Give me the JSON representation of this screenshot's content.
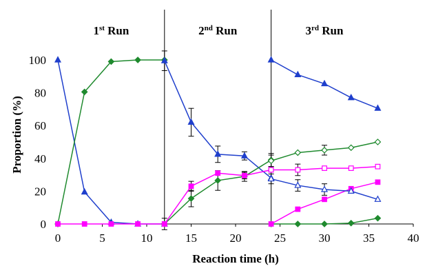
{
  "chart_data": {
    "type": "line",
    "title": "",
    "xlabel": "Reaction time (h)",
    "ylabel": "Proportion (%)",
    "xlim": [
      0,
      40
    ],
    "ylim": [
      0,
      100
    ],
    "xticks": [
      0,
      5,
      10,
      15,
      20,
      25,
      30,
      35,
      40
    ],
    "yticks": [
      0,
      20,
      40,
      60,
      80,
      100
    ],
    "grid": false,
    "legend": "none",
    "dividers_x": [
      12,
      24
    ],
    "annotations": [
      {
        "x": 6,
        "base": "1",
        "sup": "st",
        "rest": " Run"
      },
      {
        "x": 18,
        "base": "2",
        "sup": "nd",
        "rest": " Run"
      },
      {
        "x": 30,
        "base": "3",
        "sup": "rd",
        "rest": " Run"
      }
    ],
    "series": [
      {
        "color": "#1f3fcc",
        "marker": "triangle",
        "filled": true,
        "x": [
          0,
          3,
          6,
          9,
          12
        ],
        "y": [
          100,
          19.5,
          1,
          0,
          0
        ]
      },
      {
        "color": "#1f8a2e",
        "marker": "diamond",
        "filled": true,
        "x": [
          0,
          3,
          6,
          9,
          12
        ],
        "y": [
          0,
          80.5,
          99,
          100,
          100
        ]
      },
      {
        "color": "#ff00ff",
        "marker": "square",
        "filled": true,
        "x": [
          0,
          3,
          6,
          9,
          12
        ],
        "y": [
          0,
          0,
          0,
          0,
          0
        ]
      },
      {
        "color": "#1f3fcc",
        "marker": "triangle",
        "filled": true,
        "x": [
          12,
          15,
          18,
          21,
          24
        ],
        "y": [
          99.5,
          62,
          42.5,
          41.5,
          28
        ],
        "err": [
          6,
          8.5,
          5,
          2.5,
          0
        ]
      },
      {
        "color": "#1f8a2e",
        "marker": "diamond",
        "filled": true,
        "x": [
          12,
          15,
          18,
          21,
          24
        ],
        "y": [
          0,
          15.5,
          26.5,
          29,
          39
        ],
        "err": [
          3.5,
          5,
          6,
          3,
          4
        ]
      },
      {
        "color": "#ff00ff",
        "marker": "square",
        "filled": true,
        "x": [
          12,
          15,
          18,
          21,
          24
        ],
        "y": [
          0,
          23,
          31,
          29.5,
          33
        ],
        "err": [
          0,
          3,
          0,
          2,
          0
        ]
      },
      {
        "color": "#1f3fcc",
        "marker": "triangle",
        "filled": true,
        "x": [
          24,
          27,
          30,
          33,
          36
        ],
        "y": [
          100,
          91,
          85.5,
          77,
          70.5
        ]
      },
      {
        "color": "#1f8a2e",
        "marker": "diamond",
        "filled": true,
        "x": [
          24,
          27,
          30,
          33,
          36
        ],
        "y": [
          0,
          0,
          0,
          0.5,
          3.5
        ]
      },
      {
        "color": "#ff00ff",
        "marker": "square",
        "filled": true,
        "x": [
          24,
          27,
          30,
          33,
          36
        ],
        "y": [
          0,
          9,
          15,
          21.5,
          25.5
        ]
      },
      {
        "color": "#1f3fcc",
        "marker": "triangle",
        "filled": false,
        "x": [
          24,
          27,
          30,
          33,
          36
        ],
        "y": [
          27.5,
          23.5,
          21,
          20,
          15
        ],
        "err": [
          3,
          3.5,
          3.5,
          0,
          0
        ]
      },
      {
        "color": "#1f8a2e",
        "marker": "diamond",
        "filled": false,
        "x": [
          24,
          27,
          30,
          33,
          36
        ],
        "y": [
          38.5,
          43.5,
          45,
          46.5,
          50
        ],
        "err": [
          3.5,
          0,
          3,
          0,
          0
        ]
      },
      {
        "color": "#ff00ff",
        "marker": "square",
        "filled": false,
        "x": [
          24,
          27,
          30,
          33,
          36
        ],
        "y": [
          33,
          33,
          34,
          34,
          35
        ],
        "err": [
          0,
          3.5,
          0,
          0,
          0
        ]
      }
    ]
  }
}
